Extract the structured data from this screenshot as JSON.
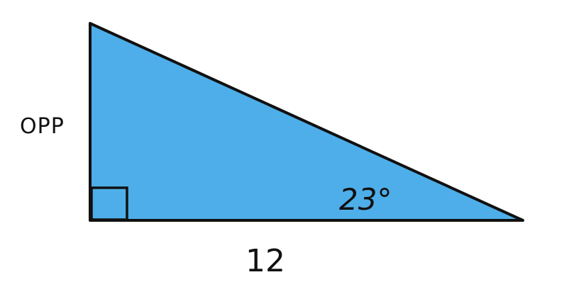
{
  "triangle": {
    "fill_color": "#4EAEE9",
    "stroke_color": "#111111",
    "opposite_label": "OPP",
    "base_label": "12",
    "angle_label": "23°",
    "has_right_angle_marker": true
  }
}
